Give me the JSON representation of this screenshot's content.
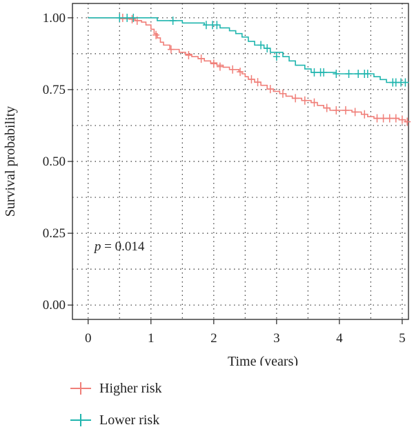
{
  "chart_data": {
    "type": "line",
    "step": true,
    "xlabel": "Time (years)",
    "ylabel": "Survival probability",
    "xlim": [
      -0.25,
      5.1
    ],
    "ylim": [
      -0.05,
      1.05
    ],
    "xticks": [
      0,
      1,
      2,
      3,
      4,
      5
    ],
    "xtick_labels": [
      "0",
      "1",
      "2",
      "3",
      "4",
      "5"
    ],
    "yticks": [
      0,
      0.25,
      0.5,
      0.75,
      1.0
    ],
    "ytick_labels": [
      "0.00",
      "0.25",
      "0.50",
      "0.75",
      "1.00"
    ],
    "grid": true,
    "legend_position": "bottom-left",
    "annotation": {
      "prefix": "p",
      "text": " = 0.014",
      "x": 0.1,
      "y": 0.19
    },
    "series": [
      {
        "name": "Higher risk",
        "color": "#F07F79",
        "steps": [
          [
            0,
            1.0
          ],
          [
            0.5,
            0.997
          ],
          [
            0.75,
            0.99
          ],
          [
            0.85,
            0.985
          ],
          [
            0.92,
            0.975
          ],
          [
            1.0,
            0.96
          ],
          [
            1.05,
            0.945
          ],
          [
            1.1,
            0.93
          ],
          [
            1.15,
            0.915
          ],
          [
            1.2,
            0.905
          ],
          [
            1.3,
            0.89
          ],
          [
            1.45,
            0.88
          ],
          [
            1.55,
            0.873
          ],
          [
            1.65,
            0.865
          ],
          [
            1.75,
            0.858
          ],
          [
            1.85,
            0.85
          ],
          [
            1.95,
            0.843
          ],
          [
            2.05,
            0.835
          ],
          [
            2.15,
            0.828
          ],
          [
            2.25,
            0.82
          ],
          [
            2.4,
            0.812
          ],
          [
            2.45,
            0.805
          ],
          [
            2.5,
            0.795
          ],
          [
            2.55,
            0.786
          ],
          [
            2.65,
            0.776
          ],
          [
            2.75,
            0.765
          ],
          [
            2.85,
            0.752
          ],
          [
            2.95,
            0.744
          ],
          [
            3.05,
            0.736
          ],
          [
            3.15,
            0.727
          ],
          [
            3.25,
            0.72
          ],
          [
            3.4,
            0.712
          ],
          [
            3.55,
            0.705
          ],
          [
            3.65,
            0.695
          ],
          [
            3.75,
            0.686
          ],
          [
            3.85,
            0.678
          ],
          [
            4.2,
            0.672
          ],
          [
            4.35,
            0.664
          ],
          [
            4.45,
            0.656
          ],
          [
            4.55,
            0.65
          ],
          [
            4.95,
            0.645
          ],
          [
            5.05,
            0.638
          ]
        ],
        "censors": [
          [
            0.55,
            1.0
          ],
          [
            0.7,
            0.995
          ],
          [
            0.78,
            0.99
          ],
          [
            1.08,
            0.94
          ],
          [
            1.32,
            0.89
          ],
          [
            1.6,
            0.87
          ],
          [
            1.8,
            0.858
          ],
          [
            2.0,
            0.84
          ],
          [
            2.1,
            0.83
          ],
          [
            2.3,
            0.82
          ],
          [
            2.42,
            0.812
          ],
          [
            2.6,
            0.786
          ],
          [
            2.7,
            0.776
          ],
          [
            2.9,
            0.752
          ],
          [
            3.1,
            0.736
          ],
          [
            3.3,
            0.72
          ],
          [
            3.45,
            0.712
          ],
          [
            3.6,
            0.705
          ],
          [
            3.8,
            0.686
          ],
          [
            3.95,
            0.678
          ],
          [
            4.1,
            0.678
          ],
          [
            4.25,
            0.672
          ],
          [
            4.4,
            0.664
          ],
          [
            4.6,
            0.65
          ],
          [
            4.7,
            0.65
          ],
          [
            4.8,
            0.65
          ],
          [
            4.9,
            0.65
          ],
          [
            5.0,
            0.645
          ],
          [
            5.08,
            0.638
          ]
        ]
      },
      {
        "name": "Lower risk",
        "color": "#1FB5AE",
        "steps": [
          [
            0,
            1.0
          ],
          [
            1.1,
            0.99
          ],
          [
            1.5,
            0.982
          ],
          [
            1.85,
            0.975
          ],
          [
            2.1,
            0.965
          ],
          [
            2.25,
            0.955
          ],
          [
            2.35,
            0.945
          ],
          [
            2.45,
            0.933
          ],
          [
            2.55,
            0.918
          ],
          [
            2.65,
            0.905
          ],
          [
            2.8,
            0.894
          ],
          [
            2.9,
            0.88
          ],
          [
            3.1,
            0.865
          ],
          [
            3.2,
            0.85
          ],
          [
            3.3,
            0.835
          ],
          [
            3.45,
            0.822
          ],
          [
            3.55,
            0.81
          ],
          [
            3.95,
            0.805
          ],
          [
            4.55,
            0.795
          ],
          [
            4.65,
            0.785
          ],
          [
            4.75,
            0.775
          ]
        ],
        "censors": [
          [
            0.5,
            1.0
          ],
          [
            0.62,
            1.0
          ],
          [
            0.72,
            1.0
          ],
          [
            1.35,
            0.99
          ],
          [
            1.88,
            0.975
          ],
          [
            1.98,
            0.975
          ],
          [
            2.05,
            0.975
          ],
          [
            2.75,
            0.905
          ],
          [
            2.85,
            0.894
          ],
          [
            3.0,
            0.865
          ],
          [
            3.6,
            0.81
          ],
          [
            3.7,
            0.81
          ],
          [
            3.75,
            0.81
          ],
          [
            3.95,
            0.805
          ],
          [
            4.15,
            0.805
          ],
          [
            4.3,
            0.805
          ],
          [
            4.4,
            0.805
          ],
          [
            4.45,
            0.805
          ],
          [
            4.85,
            0.775
          ],
          [
            4.9,
            0.775
          ],
          [
            4.98,
            0.775
          ],
          [
            5.05,
            0.775
          ]
        ]
      }
    ]
  }
}
